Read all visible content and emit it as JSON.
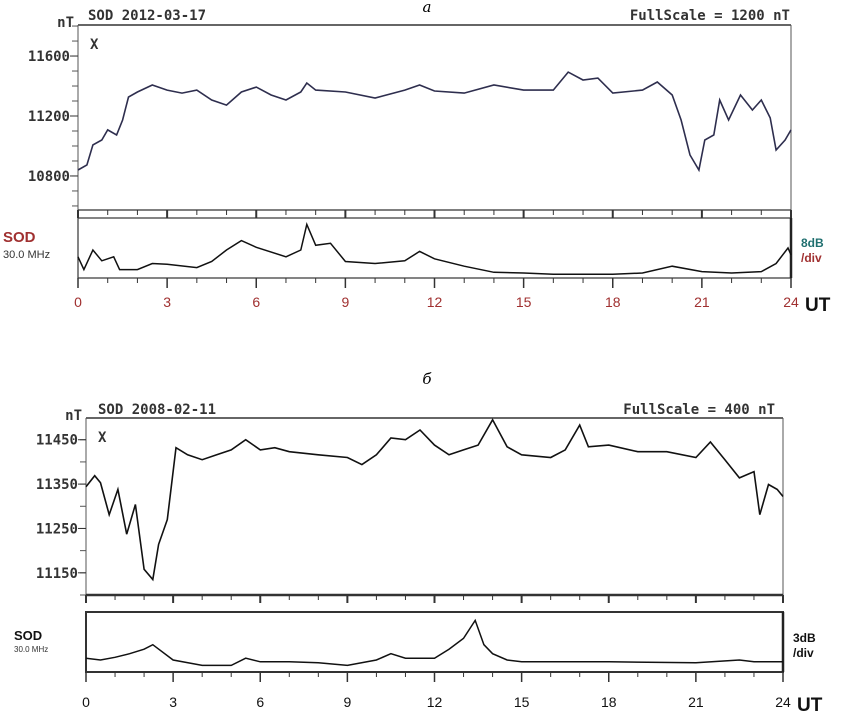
{
  "chart_data": [
    {
      "type": "line",
      "caption": "а",
      "title": "SOD 2012-03-17",
      "fullscale": "FullScale = 1200 nT",
      "ylabel": "nT",
      "component": "X",
      "xlabel": "UT",
      "xlim": [
        0,
        24
      ],
      "x_ticks": [
        "0",
        "3",
        "6",
        "9",
        "12",
        "15",
        "18",
        "21",
        "24"
      ],
      "ylim": [
        10573,
        11807
      ],
      "y_ticks": [
        "11600",
        "11200",
        "10800"
      ],
      "colors": {
        "trace": "#2e2e4e",
        "x_ticks": "#a03030",
        "rio_label": "#a03030",
        "div_label": "#1f6f6f"
      },
      "series": [
        {
          "values": [
            [
              0,
              10840
            ],
            [
              0.3,
              10873
            ],
            [
              0.5,
              11007
            ],
            [
              0.8,
              11040
            ],
            [
              1.0,
              11107
            ],
            [
              1.3,
              11073
            ],
            [
              1.5,
              11173
            ],
            [
              1.7,
              11327
            ],
            [
              2,
              11360
            ],
            [
              2.5,
              11407
            ],
            [
              3,
              11373
            ],
            [
              3.5,
              11353
            ],
            [
              4,
              11373
            ],
            [
              4.5,
              11307
            ],
            [
              5,
              11273
            ],
            [
              5.5,
              11360
            ],
            [
              6,
              11393
            ],
            [
              6.5,
              11340
            ],
            [
              7,
              11307
            ],
            [
              7.5,
              11360
            ],
            [
              7.7,
              11420
            ],
            [
              8,
              11373
            ],
            [
              9,
              11360
            ],
            [
              10,
              11320
            ],
            [
              11,
              11373
            ],
            [
              11.5,
              11407
            ],
            [
              12,
              11367
            ],
            [
              13,
              11353
            ],
            [
              14,
              11407
            ],
            [
              15,
              11373
            ],
            [
              16,
              11373
            ],
            [
              16.5,
              11493
            ],
            [
              17,
              11440
            ],
            [
              17.5,
              11453
            ],
            [
              18,
              11353
            ],
            [
              19,
              11373
            ],
            [
              19.5,
              11427
            ],
            [
              20,
              11340
            ],
            [
              20.3,
              11173
            ],
            [
              20.6,
              10940
            ],
            [
              20.9,
              10840
            ],
            [
              21.1,
              11040
            ],
            [
              21.4,
              11073
            ],
            [
              21.6,
              11307
            ],
            [
              21.9,
              11173
            ],
            [
              22.3,
              11340
            ],
            [
              22.7,
              11240
            ],
            [
              23,
              11307
            ],
            [
              23.3,
              11187
            ],
            [
              23.5,
              10973
            ],
            [
              23.8,
              11040
            ],
            [
              24,
              11107
            ]
          ]
        }
      ],
      "riometer": {
        "label": "SOD",
        "frequency": "30.0 MHz",
        "scale": [
          "8dB",
          "/div"
        ],
        "ylim": [
          0,
          8
        ],
        "values": [
          [
            0,
            2.7
          ],
          [
            0.2,
            0.8
          ],
          [
            0.5,
            3.7
          ],
          [
            0.8,
            2.1
          ],
          [
            1.2,
            2.7
          ],
          [
            1.4,
            0.8
          ],
          [
            2,
            0.8
          ],
          [
            2.5,
            1.7
          ],
          [
            3,
            1.6
          ],
          [
            4,
            1.1
          ],
          [
            4.5,
            2.0
          ],
          [
            5,
            3.7
          ],
          [
            5.5,
            5.1
          ],
          [
            6,
            4.1
          ],
          [
            7,
            2.7
          ],
          [
            7.5,
            3.7
          ],
          [
            7.7,
            7.5
          ],
          [
            8,
            4.4
          ],
          [
            8.5,
            4.7
          ],
          [
            9,
            2.0
          ],
          [
            10,
            1.7
          ],
          [
            11,
            2.1
          ],
          [
            11.5,
            3.5
          ],
          [
            12,
            2.4
          ],
          [
            13,
            1.3
          ],
          [
            14,
            0.4
          ],
          [
            15,
            0.3
          ],
          [
            16,
            0.1
          ],
          [
            18,
            0.1
          ],
          [
            19,
            0.3
          ],
          [
            20,
            1.3
          ],
          [
            21,
            0.5
          ],
          [
            22,
            0.3
          ],
          [
            23,
            0.5
          ],
          [
            23.5,
            1.7
          ],
          [
            23.9,
            4.0
          ],
          [
            24,
            3.0
          ]
        ]
      }
    },
    {
      "type": "line",
      "caption": "б",
      "title": "SOD 2008-02-11",
      "fullscale": "FullScale = 400 nT",
      "ylabel": "nT",
      "component": "X",
      "xlabel": "UT",
      "xlim": [
        0,
        24
      ],
      "x_ticks": [
        "0",
        "3",
        "6",
        "9",
        "12",
        "15",
        "18",
        "21",
        "24"
      ],
      "ylim": [
        11100,
        11499
      ],
      "y_ticks": [
        "11450",
        "11350",
        "11250",
        "11150"
      ],
      "colors": {
        "trace": "#111111",
        "x_ticks": "#111111",
        "rio_label": "#111111",
        "div_label": "#111111"
      },
      "series": [
        {
          "values": [
            [
              0,
              11344
            ],
            [
              0.3,
              11369
            ],
            [
              0.5,
              11353
            ],
            [
              0.8,
              11281
            ],
            [
              1.1,
              11338
            ],
            [
              1.4,
              11237
            ],
            [
              1.7,
              11304
            ],
            [
              2.0,
              11158
            ],
            [
              2.3,
              11135
            ],
            [
              2.5,
              11214
            ],
            [
              2.8,
              11270
            ],
            [
              3.1,
              11432
            ],
            [
              3.5,
              11416
            ],
            [
              4,
              11405
            ],
            [
              4.5,
              11416
            ],
            [
              5,
              11427
            ],
            [
              5.5,
              11450
            ],
            [
              6,
              11427
            ],
            [
              6.5,
              11432
            ],
            [
              7,
              11423
            ],
            [
              8,
              11416
            ],
            [
              9,
              11410
            ],
            [
              9.5,
              11394
            ],
            [
              10,
              11416
            ],
            [
              10.5,
              11454
            ],
            [
              11,
              11450
            ],
            [
              11.5,
              11472
            ],
            [
              12,
              11438
            ],
            [
              12.5,
              11416
            ],
            [
              13,
              11427
            ],
            [
              13.5,
              11438
            ],
            [
              14,
              11495
            ],
            [
              14.5,
              11434
            ],
            [
              15,
              11416
            ],
            [
              16,
              11410
            ],
            [
              16.5,
              11427
            ],
            [
              17,
              11483
            ],
            [
              17.3,
              11434
            ],
            [
              18,
              11438
            ],
            [
              19,
              11423
            ],
            [
              20,
              11423
            ],
            [
              21,
              11410
            ],
            [
              21.5,
              11445
            ],
            [
              22,
              11405
            ],
            [
              22.5,
              11364
            ],
            [
              23,
              11378
            ],
            [
              23.2,
              11281
            ],
            [
              23.5,
              11349
            ],
            [
              23.8,
              11338
            ],
            [
              24,
              11322
            ]
          ]
        }
      ],
      "riometer": {
        "label": "SOD",
        "frequency": "30.0 MHz",
        "scale": [
          "3dB",
          "/div"
        ],
        "ylim": [
          0,
          3
        ],
        "values": [
          [
            0,
            0.6
          ],
          [
            0.5,
            0.5
          ],
          [
            1,
            0.65
          ],
          [
            1.5,
            0.85
          ],
          [
            2,
            1.1
          ],
          [
            2.3,
            1.35
          ],
          [
            3,
            0.5
          ],
          [
            4,
            0.2
          ],
          [
            5,
            0.2
          ],
          [
            5.5,
            0.6
          ],
          [
            6,
            0.4
          ],
          [
            7,
            0.4
          ],
          [
            8,
            0.35
          ],
          [
            9,
            0.2
          ],
          [
            10,
            0.5
          ],
          [
            10.5,
            0.85
          ],
          [
            11,
            0.6
          ],
          [
            12,
            0.6
          ],
          [
            12.5,
            1.1
          ],
          [
            13,
            1.7
          ],
          [
            13.4,
            2.7
          ],
          [
            13.7,
            1.35
          ],
          [
            14,
            0.85
          ],
          [
            14.5,
            0.5
          ],
          [
            15,
            0.4
          ],
          [
            18,
            0.4
          ],
          [
            21,
            0.35
          ],
          [
            22.5,
            0.5
          ],
          [
            23,
            0.4
          ],
          [
            24,
            0.4
          ]
        ]
      }
    }
  ]
}
